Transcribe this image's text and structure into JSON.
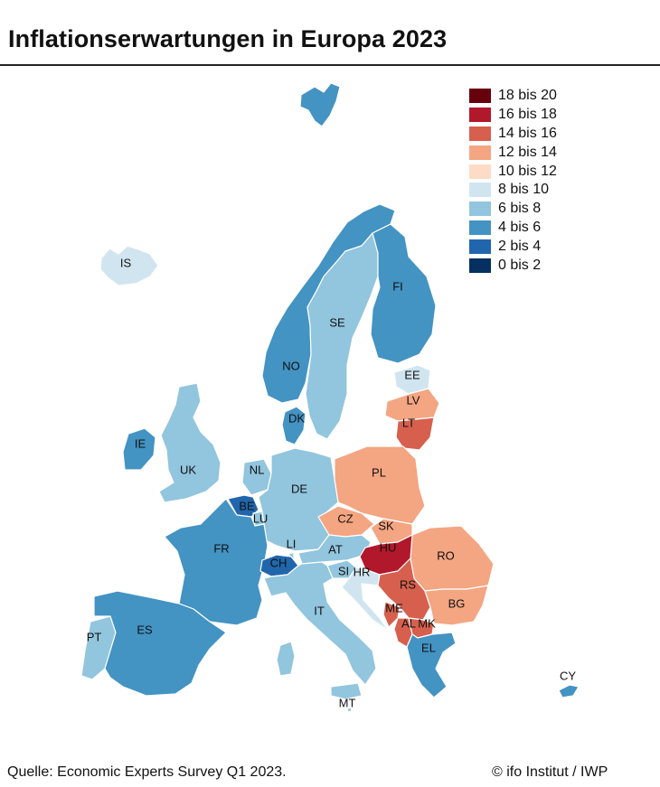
{
  "title": "Inflationserwartungen in Europa 2023",
  "legend": [
    {
      "label": "18 bis 20",
      "color": "#67000d"
    },
    {
      "label": "16 bis 18",
      "color": "#b2182b"
    },
    {
      "label": "14 bis 16",
      "color": "#d6604d"
    },
    {
      "label": "12 bis 14",
      "color": "#f4a582"
    },
    {
      "label": "10 bis 12",
      "color": "#fddbc7"
    },
    {
      "label": "8 bis 10",
      "color": "#d1e5f0"
    },
    {
      "label": "6 bis 8",
      "color": "#92c5de"
    },
    {
      "label": "4 bis 6",
      "color": "#4393c3"
    },
    {
      "label": "2 bis 4",
      "color": "#2166ac"
    },
    {
      "label": "0 bis 2",
      "color": "#053061"
    }
  ],
  "countries": {
    "IS": {
      "label": "IS",
      "color": "#d1e5f0"
    },
    "NO": {
      "label": "NO",
      "color": "#4393c3"
    },
    "SE": {
      "label": "SE",
      "color": "#92c5de"
    },
    "FI": {
      "label": "FI",
      "color": "#4393c3"
    },
    "EE": {
      "label": "EE",
      "color": "#d1e5f0"
    },
    "LV": {
      "label": "LV",
      "color": "#f4a582"
    },
    "LT": {
      "label": "LT",
      "color": "#d6604d"
    },
    "DK": {
      "label": "DK",
      "color": "#4393c3"
    },
    "IE": {
      "label": "IE",
      "color": "#4393c3"
    },
    "UK": {
      "label": "UK",
      "color": "#92c5de"
    },
    "NL": {
      "label": "NL",
      "color": "#92c5de"
    },
    "BE": {
      "label": "BE",
      "color": "#2166ac"
    },
    "LU": {
      "label": "LU",
      "color": "#92c5de"
    },
    "DE": {
      "label": "DE",
      "color": "#92c5de"
    },
    "PL": {
      "label": "PL",
      "color": "#f4a582"
    },
    "CZ": {
      "label": "CZ",
      "color": "#f4a582"
    },
    "SK": {
      "label": "SK",
      "color": "#f4a582"
    },
    "FR": {
      "label": "FR",
      "color": "#4393c3"
    },
    "LI": {
      "label": "LI",
      "color": "#92c5de"
    },
    "CH": {
      "label": "CH",
      "color": "#2166ac"
    },
    "AT": {
      "label": "AT",
      "color": "#92c5de"
    },
    "HU": {
      "label": "HU",
      "color": "#b2182b"
    },
    "RO": {
      "label": "RO",
      "color": "#f4a582"
    },
    "SI": {
      "label": "SI",
      "color": "#92c5de"
    },
    "HR": {
      "label": "HR",
      "color": "#d1e5f0"
    },
    "RS": {
      "label": "RS",
      "color": "#d6604d"
    },
    "BG": {
      "label": "BG",
      "color": "#f4a582"
    },
    "ME": {
      "label": "ME",
      "color": "#d6604d"
    },
    "AL": {
      "label": "AL",
      "color": "#d6604d"
    },
    "MK": {
      "label": "MK",
      "color": "#d6604d"
    },
    "EL": {
      "label": "EL",
      "color": "#4393c3"
    },
    "IT": {
      "label": "IT",
      "color": "#92c5de"
    },
    "MT": {
      "label": "MT",
      "color": "#92c5de"
    },
    "CY": {
      "label": "CY",
      "color": "#4393c3"
    },
    "PT": {
      "label": "PT",
      "color": "#92c5de"
    },
    "ES": {
      "label": "ES",
      "color": "#4393c3"
    },
    "SJ": {
      "label": "",
      "color": "#4393c3"
    }
  },
  "footer": {
    "source": "Quelle: Economic Experts Survey Q1 2023.",
    "credit": "© ifo Institut / IWP"
  }
}
